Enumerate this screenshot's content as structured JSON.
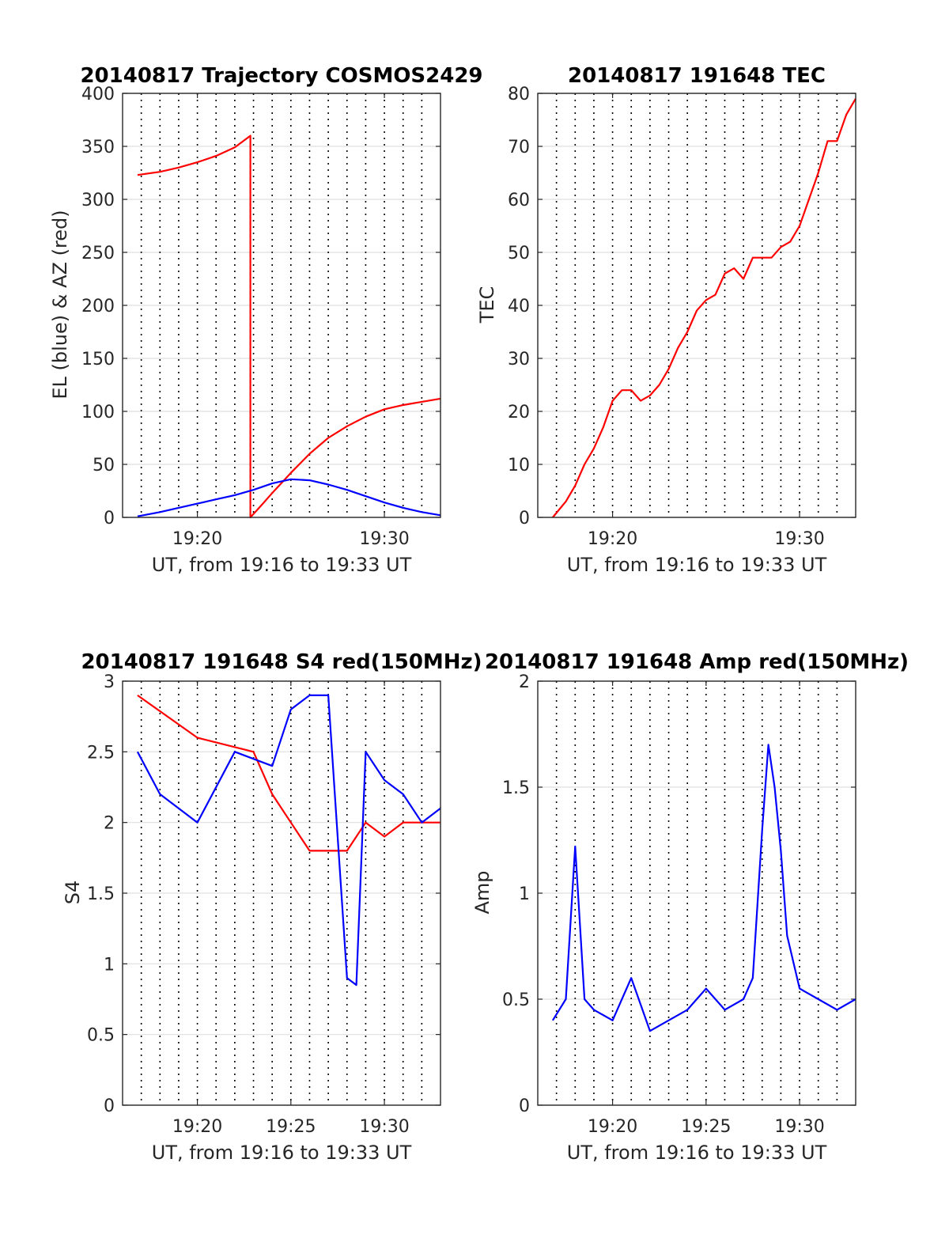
{
  "chart_data": [
    {
      "id": "trajectory",
      "type": "line",
      "title": "20140817 Trajectory COSMOS2429",
      "xlabel": "UT, from 19:16 to 19:33 UT",
      "ylabel": "EL (blue) & AZ (red)",
      "xlim": [
        "19:16:00",
        "19:33:00"
      ],
      "ylim": [
        0,
        400
      ],
      "yticks": [
        "0",
        "50",
        "100",
        "150",
        "200",
        "250",
        "300",
        "350",
        "400"
      ],
      "xticks": [
        {
          "t": "19:20",
          "label": "19:20"
        },
        {
          "t": "19:30",
          "label": "19:30"
        }
      ],
      "grid": true,
      "series": [
        {
          "color": "#ff0000",
          "t": [
            "19:16:48",
            "19:18:00",
            "19:19:00",
            "19:20:00",
            "19:21:00",
            "19:22:00",
            "19:22:50",
            "19:22:50",
            "19:23:30",
            "19:24:00",
            "19:25:00",
            "19:26:00",
            "19:27:00",
            "19:28:00",
            "19:29:00",
            "19:30:00",
            "19:31:00",
            "19:32:00",
            "19:33:00"
          ],
          "values": [
            323,
            326,
            330,
            335,
            341,
            349,
            360,
            0,
            13,
            23,
            42,
            60,
            75,
            86,
            95,
            102,
            106,
            109,
            112
          ]
        },
        {
          "color": "#0000ff",
          "t": [
            "19:16:48",
            "19:18:00",
            "19:19:00",
            "19:20:00",
            "19:21:00",
            "19:22:00",
            "19:23:00",
            "19:24:00",
            "19:25:00",
            "19:26:00",
            "19:27:00",
            "19:28:00",
            "19:29:00",
            "19:30:00",
            "19:31:00",
            "19:32:00",
            "19:33:00"
          ],
          "values": [
            1,
            5,
            9,
            13,
            17,
            21,
            26,
            32,
            36,
            35,
            31,
            26,
            20,
            14,
            9,
            5,
            2
          ]
        }
      ]
    },
    {
      "id": "tec",
      "type": "line",
      "title": "20140817 191648 TEC",
      "xlabel": "UT, from 19:16 to 19:33 UT",
      "ylabel": "TEC",
      "xlim": [
        "19:16:00",
        "19:33:00"
      ],
      "ylim": [
        0,
        80
      ],
      "yticks": [
        "0",
        "10",
        "20",
        "30",
        "40",
        "50",
        "60",
        "70",
        "80"
      ],
      "xticks": [
        {
          "t": "19:20",
          "label": "19:20"
        },
        {
          "t": "19:30",
          "label": "19:30"
        }
      ],
      "grid": true,
      "series": [
        {
          "color": "#ff0000",
          "t": [
            "19:16:48",
            "19:17:30",
            "19:18:00",
            "19:18:30",
            "19:19:00",
            "19:19:30",
            "19:20:00",
            "19:20:30",
            "19:21:00",
            "19:21:30",
            "19:22:00",
            "19:22:30",
            "19:23:00",
            "19:23:30",
            "19:24:00",
            "19:24:30",
            "19:25:00",
            "19:25:30",
            "19:26:00",
            "19:26:30",
            "19:27:00",
            "19:27:30",
            "19:28:00",
            "19:28:30",
            "19:29:00",
            "19:29:30",
            "19:30:00",
            "19:30:30",
            "19:31:00",
            "19:31:30",
            "19:32:00",
            "19:32:30",
            "19:33:00"
          ],
          "values": [
            0,
            3,
            6,
            10,
            13,
            17,
            22,
            24,
            24,
            22,
            23,
            25,
            28,
            32,
            35,
            39,
            41,
            42,
            46,
            47,
            45,
            49,
            49,
            49,
            51,
            52,
            55,
            60,
            65,
            71,
            71,
            76,
            79
          ]
        }
      ]
    },
    {
      "id": "s4",
      "type": "line",
      "title": "20140817 191648 S4 red(150MHz)",
      "xlabel": "UT, from 19:16 to 19:33 UT",
      "ylabel": "S4",
      "xlim": [
        "19:16:00",
        "19:33:00"
      ],
      "ylim": [
        0,
        3
      ],
      "yticks": [
        "0",
        "0.5",
        "1",
        "1.5",
        "2",
        "2.5",
        "3"
      ],
      "xticks": [
        {
          "t": "19:20",
          "label": "19:20"
        },
        {
          "t": "19:25",
          "label": "19:25"
        },
        {
          "t": "19:30",
          "label": "19:30"
        }
      ],
      "grid": true,
      "series": [
        {
          "color": "#ff0000",
          "t": [
            "19:16:48",
            "19:20:00",
            "19:23:00",
            "19:24:00",
            "19:25:00",
            "19:26:00",
            "19:27:00",
            "19:28:00",
            "19:29:00",
            "19:30:00",
            "19:31:00",
            "19:32:00",
            "19:33:00"
          ],
          "values": [
            2.9,
            2.6,
            2.5,
            2.2,
            2.0,
            1.8,
            1.8,
            1.8,
            2.0,
            1.9,
            2.0,
            2.0,
            2.0
          ]
        },
        {
          "color": "#0000ff",
          "t": [
            "19:16:48",
            "19:18:00",
            "19:20:00",
            "19:22:00",
            "19:24:00",
            "19:25:00",
            "19:26:00",
            "19:27:00",
            "19:28:00",
            "19:28:30",
            "19:29:00",
            "19:30:00",
            "19:31:00",
            "19:32:00",
            "19:33:00"
          ],
          "values": [
            2.5,
            2.2,
            2.0,
            2.5,
            2.4,
            2.8,
            2.9,
            2.9,
            0.9,
            0.85,
            2.5,
            2.3,
            2.2,
            2.0,
            2.1
          ]
        }
      ]
    },
    {
      "id": "amp",
      "type": "line",
      "title": "20140817 191648 Amp red(150MHz)",
      "xlabel": "UT, from 19:16 to 19:33 UT",
      "ylabel": "Amp",
      "xlim": [
        "19:16:00",
        "19:33:00"
      ],
      "ylim": [
        0,
        2
      ],
      "yticks": [
        "0",
        "0.5",
        "1",
        "1.5",
        "2"
      ],
      "xticks": [
        {
          "t": "19:20",
          "label": "19:20"
        },
        {
          "t": "19:25",
          "label": "19:25"
        },
        {
          "t": "19:30",
          "label": "19:30"
        }
      ],
      "grid": true,
      "series": [
        {
          "color": "#0000ff",
          "t": [
            "19:16:48",
            "19:17:30",
            "19:18:00",
            "19:18:30",
            "19:19:00",
            "19:20:00",
            "19:21:00",
            "19:22:00",
            "19:23:00",
            "19:24:00",
            "19:25:00",
            "19:26:00",
            "19:27:00",
            "19:27:30",
            "19:28:00",
            "19:28:20",
            "19:28:40",
            "19:29:00",
            "19:29:20",
            "19:30:00",
            "19:31:00",
            "19:32:00",
            "19:33:00"
          ],
          "values": [
            0.4,
            0.5,
            1.22,
            0.5,
            0.45,
            0.4,
            0.6,
            0.35,
            0.4,
            0.45,
            0.55,
            0.45,
            0.5,
            0.6,
            1.3,
            1.7,
            1.5,
            1.2,
            0.8,
            0.55,
            0.5,
            0.45,
            0.5
          ]
        }
      ]
    }
  ]
}
